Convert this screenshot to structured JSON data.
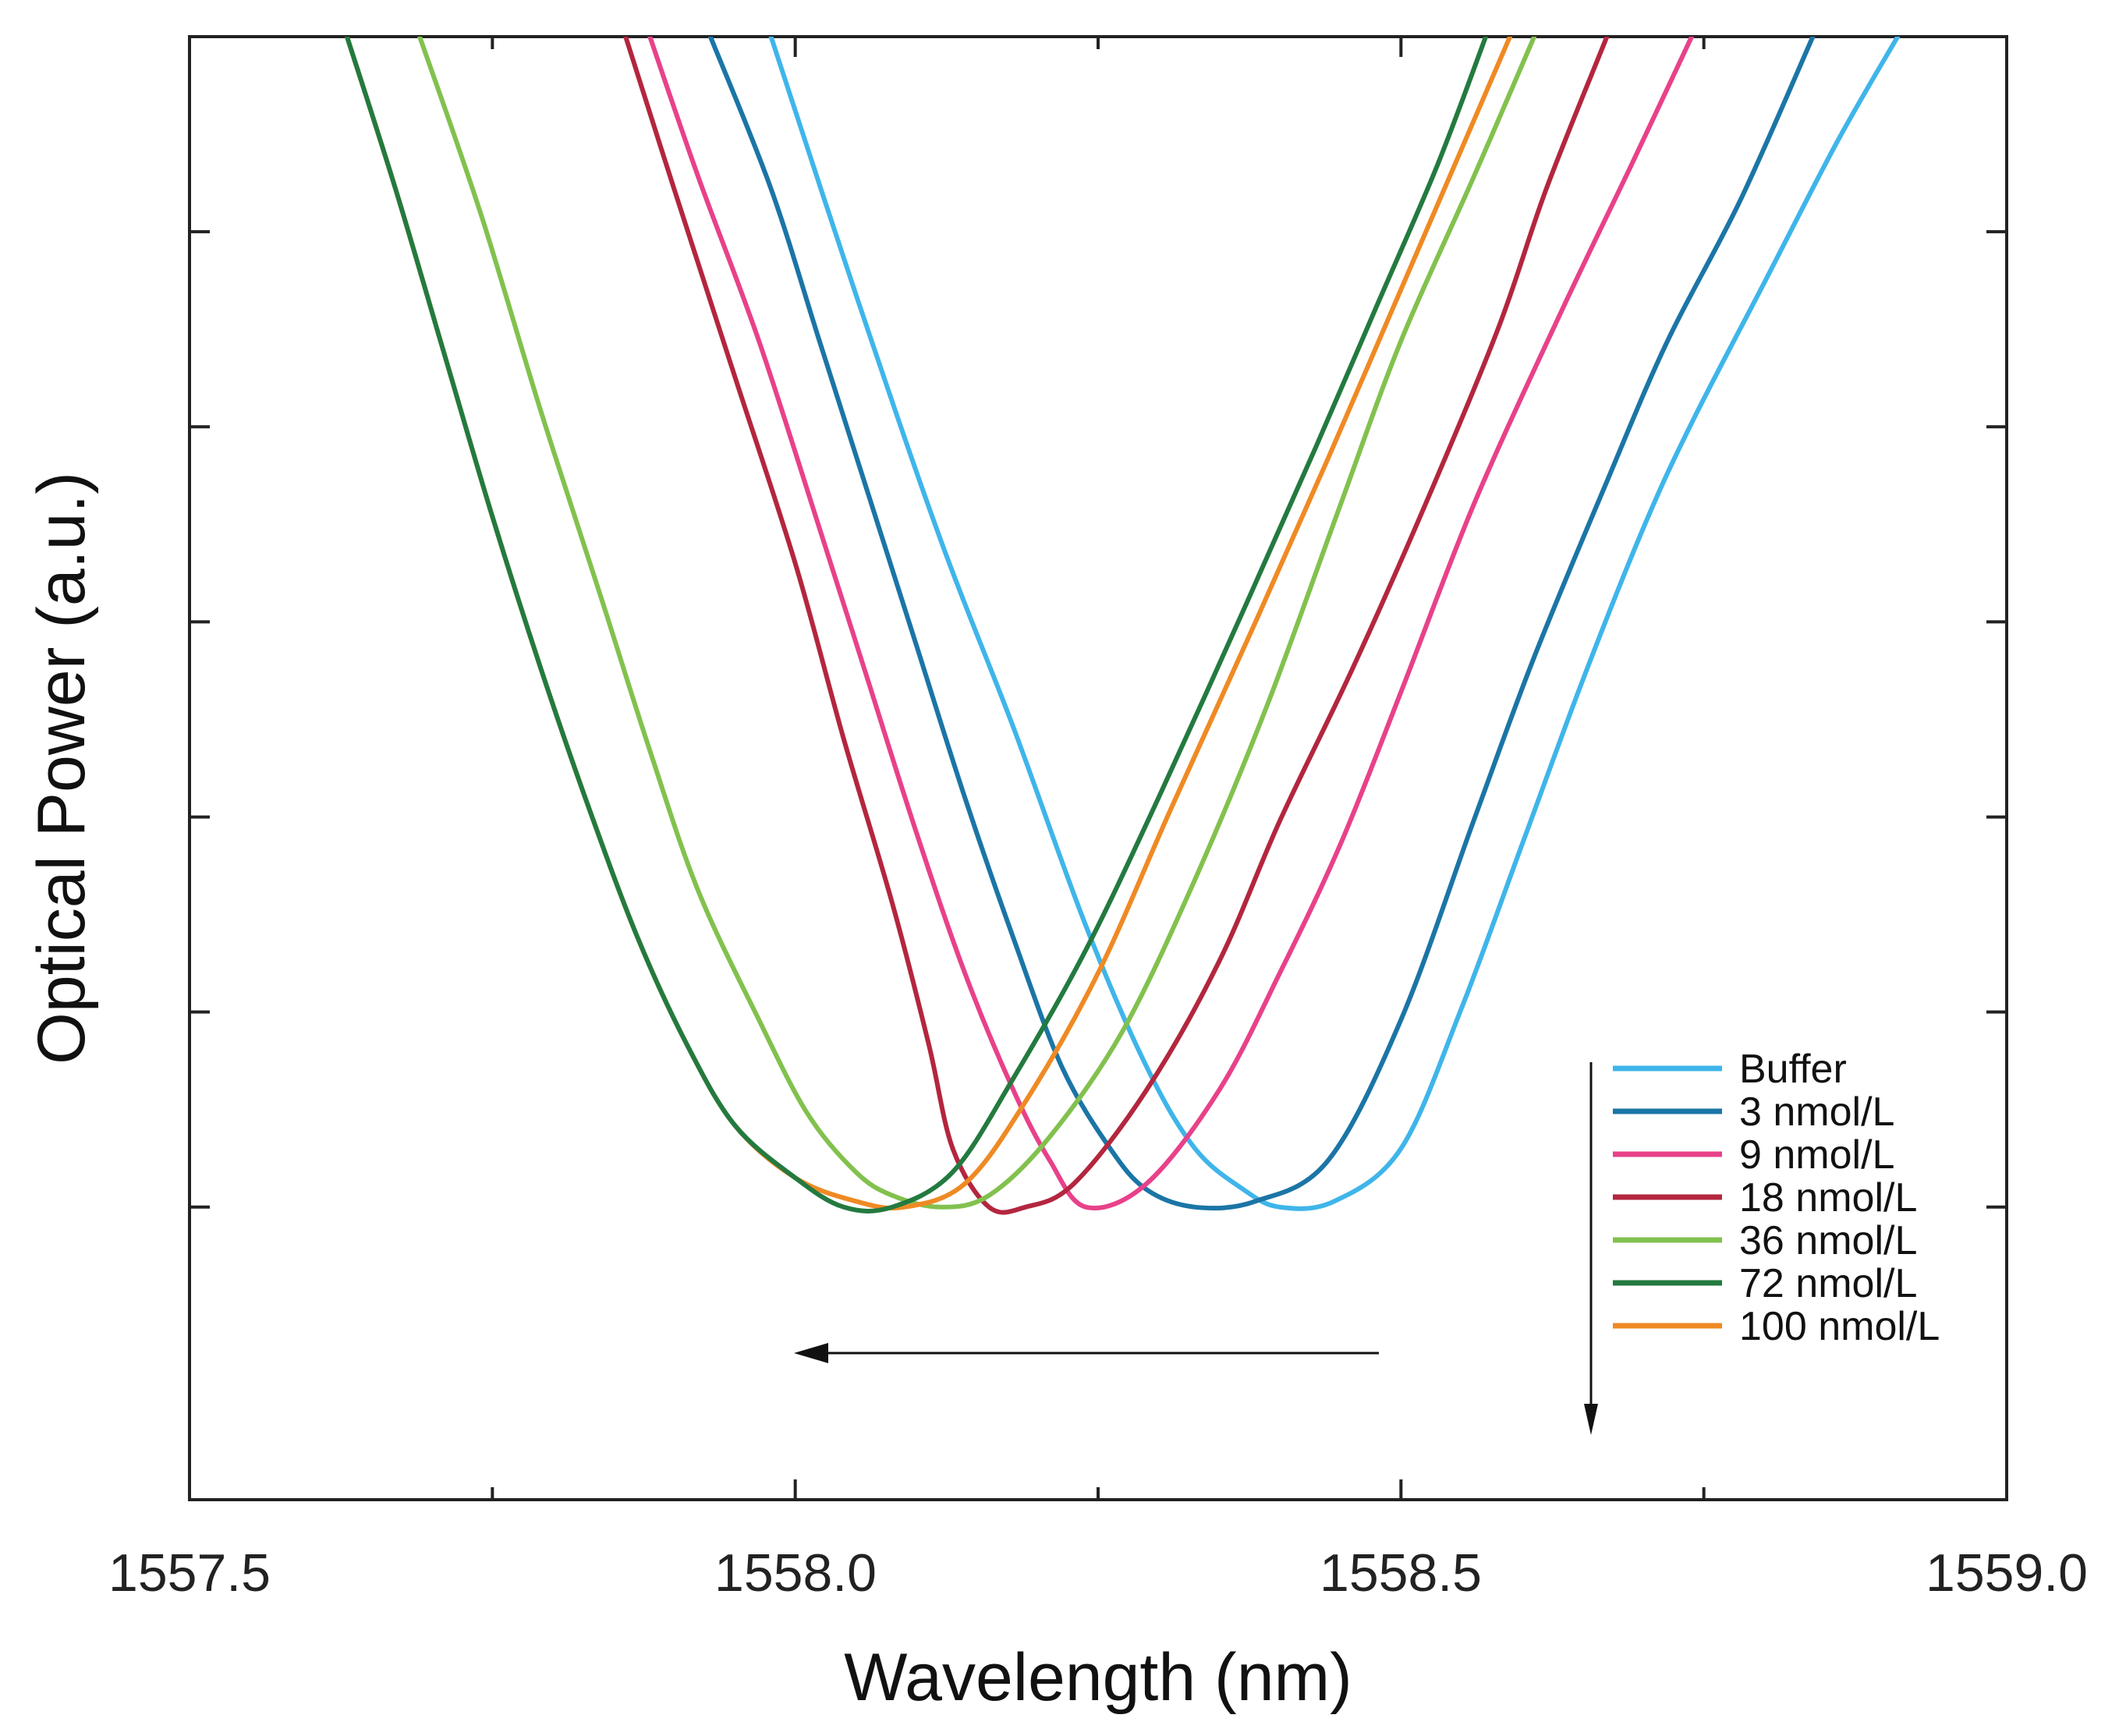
{
  "chart_data": {
    "type": "line",
    "title": "",
    "xlabel": "Wavelength (nm)",
    "ylabel": "Optical Power (a.u.)",
    "xlim": [
      1557.5,
      1559.0
    ],
    "ylim": [
      -0.25,
      1.0
    ],
    "xticks": [
      1557.5,
      1558.0,
      1558.5,
      1559.0
    ],
    "xtick_labels": [
      "1557.5",
      "1558.0",
      "1558.5",
      "1559.0"
    ],
    "x_minor_ticks": [
      1557.75,
      1558.25,
      1558.75
    ],
    "yticks_unlabeled": [
      0.0,
      0.1667,
      0.3333,
      0.5,
      0.6667,
      0.8333
    ],
    "legend_position": "bottom-right",
    "series": [
      {
        "name": "Buffer",
        "color": "#3fb5ea",
        "x": [
          1557.98,
          1558.05,
          1558.12,
          1558.18,
          1558.24,
          1558.29,
          1558.33,
          1558.37,
          1558.4,
          1558.445,
          1558.5,
          1558.55,
          1558.6,
          1558.65,
          1558.7,
          1558.74,
          1558.8,
          1558.86,
          1558.91
        ],
        "y": [
          1.0,
          0.78,
          0.57,
          0.41,
          0.24,
          0.12,
          0.05,
          0.015,
          0.0,
          0.005,
          0.05,
          0.17,
          0.31,
          0.45,
          0.58,
          0.67,
          0.79,
          0.91,
          1.0
        ]
      },
      {
        "name": "3 nmol/L",
        "color": "#1b75a6",
        "x": [
          1557.93,
          1557.98,
          1558.02,
          1558.06,
          1558.1,
          1558.14,
          1558.18,
          1558.22,
          1558.26,
          1558.29,
          1558.33,
          1558.38,
          1558.44,
          1558.5,
          1558.56,
          1558.61,
          1558.67,
          1558.72,
          1558.78,
          1558.84
        ],
        "y": [
          1.0,
          0.87,
          0.74,
          0.61,
          0.48,
          0.35,
          0.23,
          0.12,
          0.05,
          0.015,
          0.0,
          0.005,
          0.04,
          0.16,
          0.33,
          0.47,
          0.62,
          0.74,
          0.86,
          1.0
        ]
      },
      {
        "name": "9 nmol/L",
        "color": "#e8418a",
        "x": [
          1557.88,
          1557.92,
          1557.97,
          1558.02,
          1558.06,
          1558.1,
          1558.14,
          1558.18,
          1558.21,
          1558.24,
          1558.29,
          1558.35,
          1558.4,
          1558.45,
          1558.5,
          1558.56,
          1558.63,
          1558.69,
          1558.74
        ],
        "y": [
          1.0,
          0.88,
          0.74,
          0.58,
          0.45,
          0.32,
          0.2,
          0.1,
          0.04,
          0.0,
          0.02,
          0.1,
          0.2,
          0.31,
          0.44,
          0.6,
          0.76,
          0.89,
          1.0
        ]
      },
      {
        "name": "18 nmol/L",
        "color": "#b3263e",
        "x": [
          1557.86,
          1557.9,
          1557.95,
          1558.0,
          1558.04,
          1558.08,
          1558.11,
          1558.13,
          1558.16,
          1558.19,
          1558.23,
          1558.29,
          1558.35,
          1558.4,
          1558.46,
          1558.52,
          1558.58,
          1558.62,
          1558.67
        ],
        "y": [
          1.0,
          0.87,
          0.71,
          0.55,
          0.4,
          0.26,
          0.14,
          0.05,
          0.0,
          0.0,
          0.02,
          0.1,
          0.21,
          0.33,
          0.46,
          0.6,
          0.75,
          0.87,
          1.0
        ]
      },
      {
        "name": "36 nmol/L",
        "color": "#82c14e",
        "x": [
          1557.69,
          1557.74,
          1557.79,
          1557.84,
          1557.88,
          1557.92,
          1557.97,
          1558.01,
          1558.05,
          1558.08,
          1558.12,
          1558.16,
          1558.21,
          1558.27,
          1558.33,
          1558.39,
          1558.45,
          1558.5,
          1558.56,
          1558.61
        ],
        "y": [
          1.0,
          0.85,
          0.68,
          0.52,
          0.39,
          0.27,
          0.16,
          0.08,
          0.03,
          0.01,
          0.0,
          0.01,
          0.06,
          0.15,
          0.28,
          0.43,
          0.6,
          0.74,
          0.88,
          1.0
        ]
      },
      {
        "name": "72 nmol/L",
        "color": "#237a3f",
        "x": [
          1557.63,
          1557.67,
          1557.71,
          1557.75,
          1557.79,
          1557.83,
          1557.87,
          1557.91,
          1557.95,
          1558.0,
          1558.04,
          1558.08,
          1558.13,
          1558.18,
          1558.24,
          1558.3,
          1558.37,
          1558.43,
          1558.48,
          1558.53,
          1558.57
        ],
        "y": [
          1.0,
          0.87,
          0.73,
          0.59,
          0.46,
          0.34,
          0.23,
          0.14,
          0.07,
          0.025,
          0.0,
          0.0,
          0.03,
          0.11,
          0.22,
          0.35,
          0.51,
          0.65,
          0.77,
          0.89,
          1.0
        ]
      },
      {
        "name": "100 nmol/L",
        "color": "#ef8a24",
        "x": [
          1557.63,
          1557.67,
          1557.71,
          1557.75,
          1557.79,
          1557.83,
          1557.87,
          1557.91,
          1557.95,
          1558.0,
          1558.05,
          1558.09,
          1558.14,
          1558.19,
          1558.25,
          1558.31,
          1558.38,
          1558.44,
          1558.49,
          1558.54,
          1558.59
        ],
        "y": [
          1.0,
          0.87,
          0.73,
          0.59,
          0.46,
          0.34,
          0.23,
          0.14,
          0.07,
          0.025,
          0.005,
          0.0,
          0.02,
          0.09,
          0.2,
          0.34,
          0.5,
          0.64,
          0.76,
          0.88,
          1.0
        ]
      }
    ],
    "annotations": [
      {
        "name": "shift-arrow",
        "kind": "arrow",
        "direction": "left",
        "from": [
          1558.48,
          -0.04
        ],
        "to": [
          1557.99,
          -0.04
        ]
      },
      {
        "name": "order-arrow",
        "kind": "arrow",
        "direction": "down",
        "note": "legend order indicator"
      }
    ]
  }
}
